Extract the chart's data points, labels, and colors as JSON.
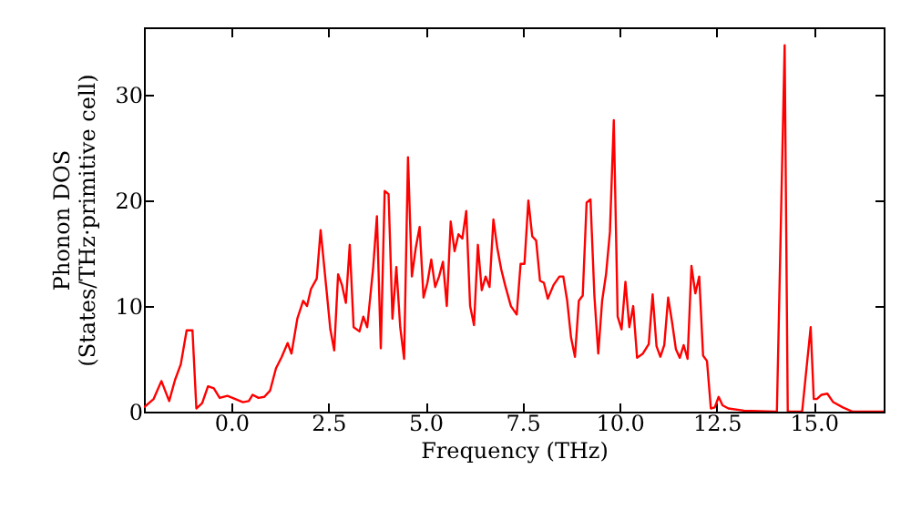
{
  "chart_data": {
    "type": "line",
    "xlabel": "Frequency (THz)",
    "ylabel": "Phonon DOS\n(States/THz·primitive cell)",
    "xlim": [
      -2.25,
      16.8
    ],
    "ylim": [
      0,
      36.4
    ],
    "xticks": [
      {
        "value": 0,
        "label": "0.0"
      },
      {
        "value": 2.5,
        "label": "2.5"
      },
      {
        "value": 5,
        "label": "5.0"
      },
      {
        "value": 7.5,
        "label": "7.5"
      },
      {
        "value": 10,
        "label": "10.0"
      },
      {
        "value": 12.5,
        "label": "12.5"
      },
      {
        "value": 15,
        "label": "15.0"
      }
    ],
    "yticks": [
      0,
      10,
      20,
      30
    ],
    "grid": false,
    "marker": "none",
    "line_style": "solid",
    "series": [
      {
        "color": "#ff0000",
        "x": [
          -2.25,
          -2.0,
          -1.8,
          -1.6,
          -1.45,
          -1.3,
          -1.15,
          -1.0,
          -0.9,
          -0.75,
          -0.6,
          -0.45,
          -0.3,
          -0.1,
          0.1,
          0.3,
          0.45,
          0.55,
          0.7,
          0.85,
          1.0,
          1.15,
          1.3,
          1.45,
          1.55,
          1.7,
          1.85,
          1.95,
          2.05,
          2.2,
          2.3,
          2.45,
          2.55,
          2.65,
          2.75,
          2.85,
          2.95,
          3.05,
          3.15,
          3.3,
          3.4,
          3.5,
          3.65,
          3.75,
          3.85,
          3.95,
          4.05,
          4.15,
          4.25,
          4.35,
          4.45,
          4.55,
          4.65,
          4.75,
          4.85,
          4.95,
          5.05,
          5.15,
          5.25,
          5.35,
          5.45,
          5.55,
          5.65,
          5.75,
          5.85,
          5.95,
          6.05,
          6.15,
          6.25,
          6.35,
          6.45,
          6.55,
          6.65,
          6.75,
          6.85,
          6.95,
          7.05,
          7.2,
          7.35,
          7.45,
          7.55,
          7.65,
          7.75,
          7.85,
          7.95,
          8.05,
          8.15,
          8.3,
          8.45,
          8.55,
          8.65,
          8.75,
          8.85,
          8.95,
          9.05,
          9.15,
          9.25,
          9.35,
          9.45,
          9.55,
          9.65,
          9.75,
          9.85,
          9.95,
          10.05,
          10.15,
          10.25,
          10.35,
          10.45,
          10.6,
          10.75,
          10.85,
          10.95,
          11.05,
          11.15,
          11.25,
          11.35,
          11.45,
          11.55,
          11.65,
          11.75,
          11.85,
          11.95,
          12.05,
          12.15,
          12.25,
          12.35,
          12.45,
          12.55,
          12.65,
          12.8,
          13.2,
          14.0,
          14.05,
          14.25,
          14.33,
          14.5,
          14.7,
          14.92,
          15.0,
          15.08,
          15.2,
          15.35,
          15.5,
          15.75,
          16.0,
          16.8
        ],
        "values": [
          0.4,
          1.2,
          2.9,
          1.0,
          3.0,
          4.5,
          7.7,
          7.7,
          0.3,
          0.8,
          2.4,
          2.2,
          1.3,
          1.5,
          1.2,
          0.9,
          1.0,
          1.6,
          1.3,
          1.4,
          2.0,
          4.1,
          5.2,
          6.5,
          5.5,
          8.8,
          10.5,
          10.0,
          11.6,
          12.6,
          17.2,
          11.6,
          7.8,
          5.8,
          13.0,
          12.0,
          10.3,
          15.8,
          8.0,
          7.6,
          9.0,
          8.0,
          13.5,
          18.5,
          6.0,
          20.9,
          20.6,
          8.8,
          13.7,
          8.0,
          5.0,
          24.1,
          12.8,
          15.5,
          17.5,
          10.8,
          12.2,
          14.4,
          11.8,
          12.8,
          14.2,
          10.0,
          18.0,
          15.2,
          16.8,
          16.4,
          19.0,
          10.0,
          8.2,
          15.8,
          11.5,
          12.8,
          11.8,
          18.2,
          15.5,
          13.5,
          12.0,
          10.0,
          9.2,
          14.0,
          14.0,
          20.0,
          16.6,
          16.2,
          12.4,
          12.2,
          10.7,
          12.0,
          12.8,
          12.8,
          10.5,
          7.0,
          5.2,
          10.5,
          11.0,
          19.8,
          20.1,
          11.0,
          5.5,
          10.5,
          13.0,
          17.0,
          27.6,
          9.0,
          7.8,
          12.3,
          8.0,
          10.0,
          5.1,
          5.5,
          6.4,
          11.1,
          6.2,
          5.2,
          6.3,
          10.8,
          8.5,
          5.9,
          5.1,
          6.3,
          5.0,
          13.8,
          11.2,
          12.8,
          5.3,
          4.8,
          0.3,
          0.4,
          1.4,
          0.6,
          0.3,
          0.1,
          0,
          0,
          34.7,
          0,
          0,
          0,
          8.0,
          1.2,
          1.2,
          1.6,
          1.7,
          0.9,
          0.4,
          0,
          0
        ]
      }
    ]
  }
}
